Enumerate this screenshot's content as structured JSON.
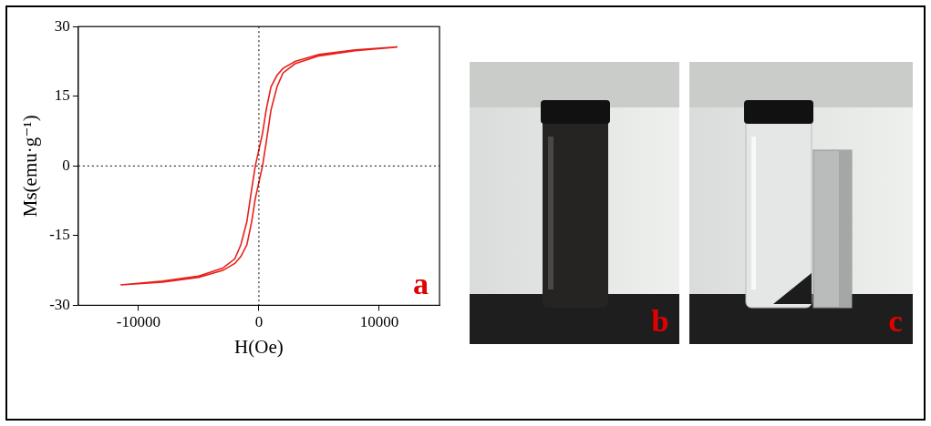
{
  "chart_data": {
    "type": "line",
    "panel_label": "a",
    "x_label": "H(Oe)",
    "y_label": "Ms(emu·g⁻¹)",
    "x": [
      11500,
      8000,
      5000,
      3000,
      2000,
      1500,
      1000,
      600,
      300,
      0,
      -300,
      -600,
      -1000,
      -1500,
      -2000,
      -3000,
      -5000,
      -8000,
      -11500,
      -8000,
      -5000,
      -3000,
      -2000,
      -1500,
      -1000,
      -600,
      -300,
      0,
      300,
      600,
      1000,
      1500,
      2000,
      3000,
      5000,
      8000,
      11500
    ],
    "values": [
      25.6,
      25,
      24,
      22.5,
      21,
      19.5,
      17,
      12,
      7,
      3.5,
      0,
      -5,
      -12,
      -17,
      -20,
      -22,
      -23.7,
      -24.8,
      -25.6,
      -25,
      -24,
      -22.5,
      -21,
      -19.5,
      -17,
      -12,
      -7,
      -3.5,
      0,
      5,
      12,
      17,
      20,
      22,
      23.7,
      24.8,
      25.6
    ],
    "color": "#e8201a",
    "xlim": [
      -15000,
      15000
    ],
    "xticks": [
      -10000,
      0,
      10000
    ],
    "ylim": [
      -30,
      30
    ],
    "yticks": [
      -30,
      -15,
      0,
      15,
      30
    ],
    "reference_lines": {
      "x": [
        0
      ],
      "y": [
        0
      ]
    },
    "grid": false
  },
  "photos": [
    {
      "label": "b"
    },
    {
      "label": "c"
    }
  ]
}
